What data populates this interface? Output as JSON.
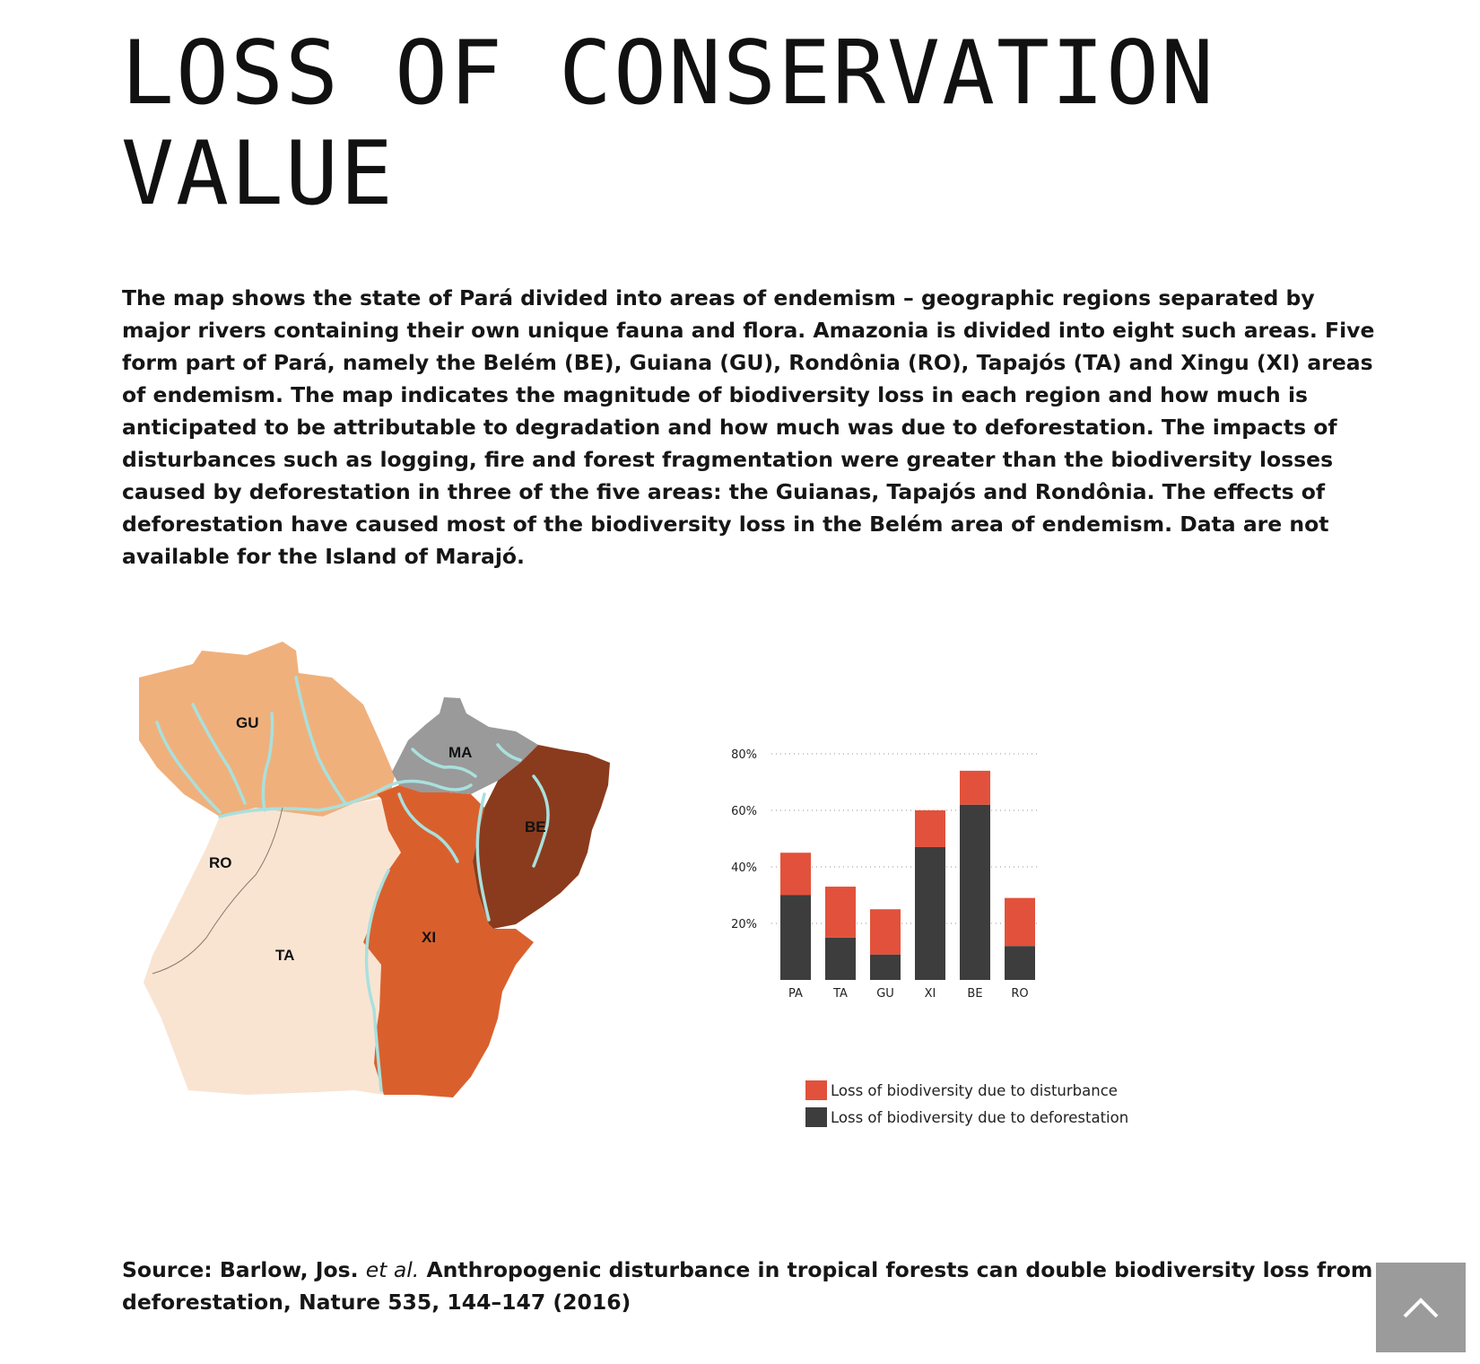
{
  "page": {
    "title": "LOSS OF CONSERVATION VALUE",
    "intro": "The map shows the state of Pará divided into areas of endemism – geographic regions separated by major rivers containing their own unique fauna and flora. Amazonia is divided into eight such areas. Five form part of Pará, namely the Belém (BE), Guiana (GU), Rondônia (RO), Tapajós (TA) and Xingu (XI) areas of endemism. The map indicates the magnitude of biodiversity loss in each region and how much is anticipated to be attributable to degradation and how much was due to deforestation. The impacts of disturbances such as logging, fire and forest fragmentation were greater than the biodiversity losses caused by deforestation in three of the five areas: the Guianas, Tapajós and Rondônia. The effects of deforestation have caused most of the biodiversity loss in the Belém area of endemism. Data are not available for the Island of Marajó."
  },
  "map": {
    "labels": {
      "gu": "GU",
      "ma": "MA",
      "ro": "RO",
      "ta": "TA",
      "xi": "XI",
      "be": "BE"
    },
    "colors": {
      "gu": "#f0b07c",
      "ma": "#9a9a9a",
      "ro_ta": "#f9e4d2",
      "xi": "#d9602d",
      "be": "#8a3b1d",
      "river": "#a9e0dd"
    }
  },
  "chart_data": {
    "type": "bar",
    "stacked": true,
    "categories": [
      "PA",
      "TA",
      "GU",
      "XI",
      "BE",
      "RO"
    ],
    "series": [
      {
        "name": "Loss of biodiversity due to deforestation",
        "values": [
          30,
          15,
          9,
          47,
          62,
          12
        ],
        "color": "#3d3d3d"
      },
      {
        "name": "Loss of biodiversity due to disturbance",
        "values": [
          15,
          18,
          16,
          13,
          12,
          17
        ],
        "color": "#e2513b"
      }
    ],
    "yticks": [
      20,
      40,
      60,
      80
    ],
    "ytick_labels": [
      "20%",
      "40%",
      "60%",
      "80%"
    ],
    "ylim": [
      0,
      80
    ],
    "grid": "dotted horizontal",
    "legend": [
      {
        "label": "Loss of biodiversity due to disturbance",
        "color": "#e2513b"
      },
      {
        "label": "Loss of biodiversity due to deforestation",
        "color": "#3d3d3d"
      }
    ]
  },
  "source": {
    "prefix": "Source: Barlow, Jos.",
    "etal": "et al.",
    "rest": "Anthropogenic disturbance in tropical forests can double biodiversity loss from deforestation, Nature 535, 144–147 (2016)"
  },
  "controls": {
    "top_button_icon": "chevron-up-icon"
  }
}
